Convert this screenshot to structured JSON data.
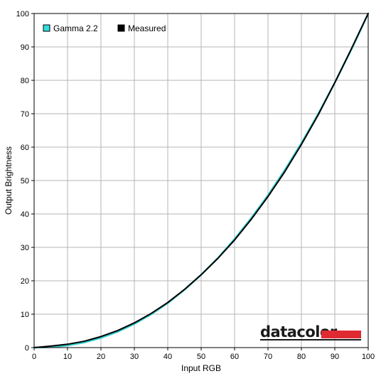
{
  "chart_data": {
    "type": "line",
    "title": "",
    "xlabel": "Input RGB",
    "ylabel": "Output Brightness",
    "xlim": [
      0,
      100
    ],
    "ylim": [
      0,
      100
    ],
    "xticks": [
      0,
      10,
      20,
      30,
      40,
      50,
      60,
      70,
      80,
      90,
      100
    ],
    "yticks": [
      0,
      10,
      20,
      30,
      40,
      50,
      60,
      70,
      80,
      90,
      100
    ],
    "grid": true,
    "legend_position": "top-left",
    "series": [
      {
        "name": "Gamma 2.2",
        "color": "#33cccc",
        "legend_swatch": "#33dddd",
        "x": [
          0,
          5,
          10,
          15,
          20,
          25,
          30,
          35,
          40,
          45,
          50,
          55,
          60,
          65,
          70,
          75,
          80,
          85,
          90,
          95,
          100
        ],
        "y": [
          0,
          0.14,
          0.63,
          1.54,
          2.9,
          4.74,
          7.07,
          9.93,
          13.3,
          17.3,
          21.8,
          26.8,
          32.5,
          38.8,
          45.6,
          53.1,
          61.2,
          69.9,
          79.3,
          89.3,
          100
        ]
      },
      {
        "name": "Measured",
        "color": "#000000",
        "legend_swatch": "#000000",
        "x": [
          0,
          5,
          10,
          15,
          20,
          25,
          30,
          35,
          40,
          45,
          50,
          55,
          60,
          65,
          70,
          75,
          80,
          85,
          90,
          95,
          100
        ],
        "y": [
          0,
          0.45,
          1.0,
          1.9,
          3.3,
          5.1,
          7.4,
          10.2,
          13.5,
          17.4,
          21.8,
          26.7,
          32.2,
          38.4,
          45.2,
          52.6,
          60.8,
          69.6,
          79.3,
          89.5,
          100
        ]
      }
    ]
  },
  "watermark": {
    "brand": "datacolor",
    "bar_color": "#e02a32"
  }
}
